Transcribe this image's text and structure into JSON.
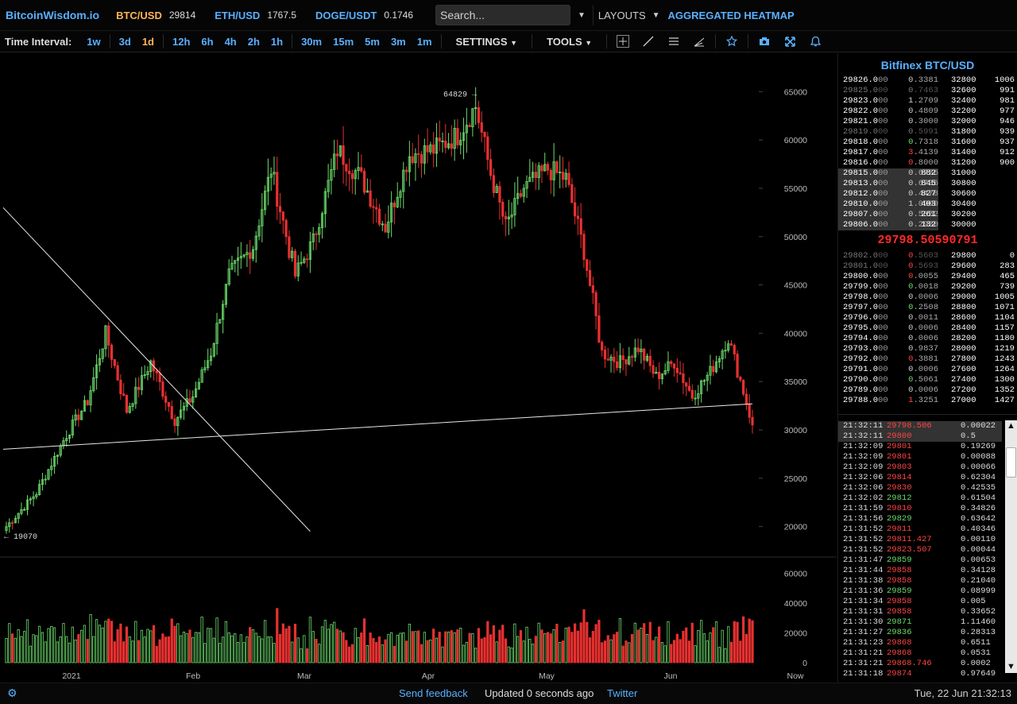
{
  "header": {
    "brand": "BitcoinWisdom.io",
    "tickers": [
      {
        "name": "BTC/USD",
        "price": "29814",
        "color": "#ffb35a"
      },
      {
        "name": "ETH/USD",
        "price": "1767.5",
        "color": "#5ab0ff"
      },
      {
        "name": "DOGE/USDT",
        "price": "0.1746",
        "color": "#5ab0ff"
      }
    ],
    "search_placeholder": "Search...",
    "layouts": "LAYOUTS",
    "heatmap": "AGGREGATED HEATMAP"
  },
  "toolbar": {
    "label": "Time Interval:",
    "groups": [
      [
        "1w"
      ],
      [
        "3d",
        "1d"
      ],
      [
        "12h",
        "6h",
        "4h",
        "2h",
        "1h"
      ],
      [
        "30m",
        "15m",
        "5m",
        "3m",
        "1m"
      ]
    ],
    "active": "1d",
    "settings": "SETTINGS",
    "tools": "TOOLS",
    "icons": [
      "crosshair-icon",
      "line-tool-icon",
      "hlines-icon",
      "fib-icon",
      "star-icon",
      "camera-icon",
      "fullscreen-icon",
      "bell-icon"
    ]
  },
  "chart": {
    "y_ticks": [
      65000,
      60000,
      55000,
      50000,
      45000,
      40000,
      35000,
      30000,
      25000,
      20000
    ],
    "vol_ticks": [
      60000,
      40000,
      20000,
      0
    ],
    "x_labels": [
      "2021",
      "Feb",
      "Mar",
      "Apr",
      "May",
      "Jun",
      "Now"
    ],
    "high_label": "64829 →",
    "low_label": "← 19070",
    "colors": {
      "up": "#6cdc6c",
      "down": "#e83030"
    }
  },
  "chart_data": {
    "type": "candlestick",
    "ylim": [
      18000,
      67000
    ],
    "high": 64829,
    "low": 19070,
    "anchors": [
      {
        "day": 0,
        "close": 20000
      },
      {
        "day": 10,
        "close": 23500
      },
      {
        "day": 20,
        "close": 29500
      },
      {
        "day": 27,
        "close": 33000
      },
      {
        "day": 33,
        "close": 40000
      },
      {
        "day": 40,
        "close": 32000
      },
      {
        "day": 48,
        "close": 37000
      },
      {
        "day": 56,
        "close": 31000
      },
      {
        "day": 62,
        "close": 33500
      },
      {
        "day": 68,
        "close": 38000
      },
      {
        "day": 74,
        "close": 46000
      },
      {
        "day": 82,
        "close": 49000
      },
      {
        "day": 88,
        "close": 57000
      },
      {
        "day": 96,
        "close": 46000
      },
      {
        "day": 102,
        "close": 49500
      },
      {
        "day": 110,
        "close": 59000
      },
      {
        "day": 118,
        "close": 56000
      },
      {
        "day": 126,
        "close": 51000
      },
      {
        "day": 134,
        "close": 58500
      },
      {
        "day": 142,
        "close": 59000
      },
      {
        "day": 150,
        "close": 60500
      },
      {
        "day": 156,
        "close": 63500
      },
      {
        "day": 161,
        "close": 56500
      },
      {
        "day": 166,
        "close": 51000
      },
      {
        "day": 172,
        "close": 55000
      },
      {
        "day": 180,
        "close": 57000
      },
      {
        "day": 186,
        "close": 56000
      },
      {
        "day": 192,
        "close": 48500
      },
      {
        "day": 198,
        "close": 38000
      },
      {
        "day": 204,
        "close": 37000
      },
      {
        "day": 210,
        "close": 38500
      },
      {
        "day": 216,
        "close": 35500
      },
      {
        "day": 222,
        "close": 37000
      },
      {
        "day": 228,
        "close": 33500
      },
      {
        "day": 234,
        "close": 36000
      },
      {
        "day": 240,
        "close": 39500
      },
      {
        "day": 245,
        "close": 34000
      },
      {
        "day": 248,
        "close": 30500
      }
    ],
    "trendlines": [
      {
        "from": [
          0,
          28000
        ],
        "to": [
          248,
          32700
        ]
      },
      {
        "from": [
          0,
          53000
        ],
        "to": [
          101,
          19500
        ]
      }
    ]
  },
  "orderbook": {
    "title": "Bitfinex BTC/USD",
    "asks": [
      [
        "29826.0",
        "00",
        "0.3381",
        "32800",
        "1006",
        false
      ],
      [
        "29825.0",
        "00",
        "0.7463",
        "32600",
        "991",
        true
      ],
      [
        "29823.0",
        "00",
        "1.2709",
        "32400",
        "981",
        false
      ],
      [
        "29822.0",
        "00",
        "0.4809",
        "32200",
        "977",
        false
      ],
      [
        "29821.0",
        "00",
        "0.3000",
        "32000",
        "946",
        false
      ],
      [
        "29819.0",
        "00",
        "0.5991",
        "31800",
        "939",
        true
      ],
      [
        "29818.0",
        "00",
        "0.7318",
        "31600",
        "937",
        false
      ],
      [
        "29817.0",
        "00",
        "3.4139",
        "31400",
        "912",
        false
      ],
      [
        "29816.0",
        "00",
        "0.8000",
        "31200",
        "900",
        false
      ],
      [
        "29815.0",
        "00",
        "0.6736",
        "31000",
        "882",
        false
      ],
      [
        "29813.0",
        "00",
        "0.6736",
        "30800",
        "845",
        false
      ],
      [
        "29812.0",
        "00",
        "0.4478",
        "30600",
        "827",
        false
      ],
      [
        "29810.0",
        "00",
        "1.0000",
        "30400",
        "403",
        false
      ],
      [
        "29807.0",
        "00",
        "0.5052",
        "30200",
        "261",
        false
      ],
      [
        "29806.0",
        "00",
        "0.2930",
        "30000",
        "132",
        false
      ]
    ],
    "last_price": "29798.50590791",
    "bids": [
      [
        "29802.0",
        "00",
        "0.5603",
        "29800",
        "0",
        true
      ],
      [
        "29801.0",
        "00",
        "0.5693",
        "29600",
        "283",
        true
      ],
      [
        "29800.0",
        "00",
        "0.0055",
        "29400",
        "465",
        false
      ],
      [
        "29799.0",
        "00",
        "0.0018",
        "29200",
        "739",
        false
      ],
      [
        "29798.0",
        "00",
        "0.0006",
        "29000",
        "1005",
        false
      ],
      [
        "29797.0",
        "00",
        "0.2508",
        "28800",
        "1071",
        false
      ],
      [
        "29796.0",
        "00",
        "0.0011",
        "28600",
        "1104",
        false
      ],
      [
        "29795.0",
        "00",
        "0.0006",
        "28400",
        "1157",
        false
      ],
      [
        "29794.0",
        "00",
        "0.0006",
        "28200",
        "1180",
        false
      ],
      [
        "29793.0",
        "00",
        "0.9837",
        "28000",
        "1219",
        false
      ],
      [
        "29792.0",
        "00",
        "0.3881",
        "27800",
        "1243",
        false
      ],
      [
        "29791.0",
        "00",
        "0.0006",
        "27600",
        "1264",
        false
      ],
      [
        "29790.0",
        "00",
        "0.5061",
        "27400",
        "1300",
        false
      ],
      [
        "29789.0",
        "00",
        "0.0006",
        "27200",
        "1352",
        false
      ],
      [
        "29788.0",
        "00",
        "1.3251",
        "27000",
        "1427",
        false
      ]
    ]
  },
  "trades": [
    [
      "21:32:11",
      "29798.506",
      "0.00022",
      "dn"
    ],
    [
      "21:32:11",
      "29800",
      "0.5",
      "dn"
    ],
    [
      "21:32:09",
      "29801",
      "0.19269",
      "dn"
    ],
    [
      "21:32:09",
      "29801",
      "0.00088",
      "dn"
    ],
    [
      "21:32:09",
      "29803",
      "0.00066",
      "dn"
    ],
    [
      "21:32:06",
      "29814",
      "0.62304",
      "dn"
    ],
    [
      "21:32:06",
      "29830",
      "0.42535",
      "dn"
    ],
    [
      "21:32:02",
      "29812",
      "0.61504",
      "up"
    ],
    [
      "21:31:59",
      "29810",
      "0.34826",
      "dn"
    ],
    [
      "21:31:56",
      "29829",
      "0.63642",
      "up"
    ],
    [
      "21:31:52",
      "29811",
      "0.40346",
      "dn"
    ],
    [
      "21:31:52",
      "29811.427",
      "0.00110",
      "dn"
    ],
    [
      "21:31:52",
      "29823.507",
      "0.00044",
      "dn"
    ],
    [
      "21:31:47",
      "29859",
      "0.00653",
      "up"
    ],
    [
      "21:31:44",
      "29858",
      "0.34128",
      "dn"
    ],
    [
      "21:31:38",
      "29858",
      "0.21040",
      "dn"
    ],
    [
      "21:31:36",
      "29859",
      "0.08999",
      "up"
    ],
    [
      "21:31:34",
      "29858",
      "0.005",
      "dn"
    ],
    [
      "21:31:31",
      "29858",
      "0.33652",
      "dn"
    ],
    [
      "21:31:30",
      "29871",
      "1.11460",
      "up"
    ],
    [
      "21:31:27",
      "29836",
      "0.28313",
      "up"
    ],
    [
      "21:31:23",
      "29868",
      "0.6511",
      "dn"
    ],
    [
      "21:31:21",
      "29868",
      "0.0531",
      "dn"
    ],
    [
      "21:31:21",
      "29868.746",
      "0.0002",
      "dn"
    ],
    [
      "21:31:18",
      "29874",
      "0.97649",
      "dn"
    ]
  ],
  "footer": {
    "feedback": "Send feedback",
    "updated": "Updated 0 seconds ago",
    "twitter": "Twitter",
    "datetime": "Tue, 22 Jun 21:32:13"
  }
}
